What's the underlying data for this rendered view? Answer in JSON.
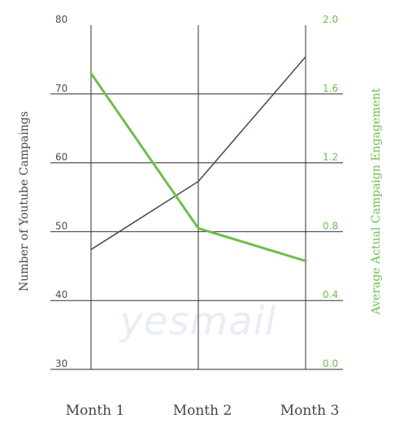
{
  "chart_data": {
    "type": "line",
    "categories": [
      "Month 1",
      "Month 2",
      "Month 3"
    ],
    "y_left": {
      "label": "Number of Youtube Campaings",
      "min": 30,
      "max": 80,
      "ticks": [
        "80",
        "70",
        "60",
        "50",
        "40",
        "30"
      ]
    },
    "y_right": {
      "label": "Average Actual Campaign Engagement",
      "min": 0,
      "max": 2,
      "ticks": [
        "2.0",
        "1.6",
        "1.2",
        "0.8",
        "0.4",
        "0.0"
      ]
    },
    "series": [
      {
        "axis": "left",
        "color": "#4a515c",
        "values": [
          47.4,
          57.3,
          75.4
        ]
      },
      {
        "axis": "right",
        "color": "#6cc04a",
        "values": [
          1.72,
          0.82,
          0.63
        ]
      }
    ],
    "grid": true
  },
  "watermark": {
    "text": "yesmail"
  }
}
